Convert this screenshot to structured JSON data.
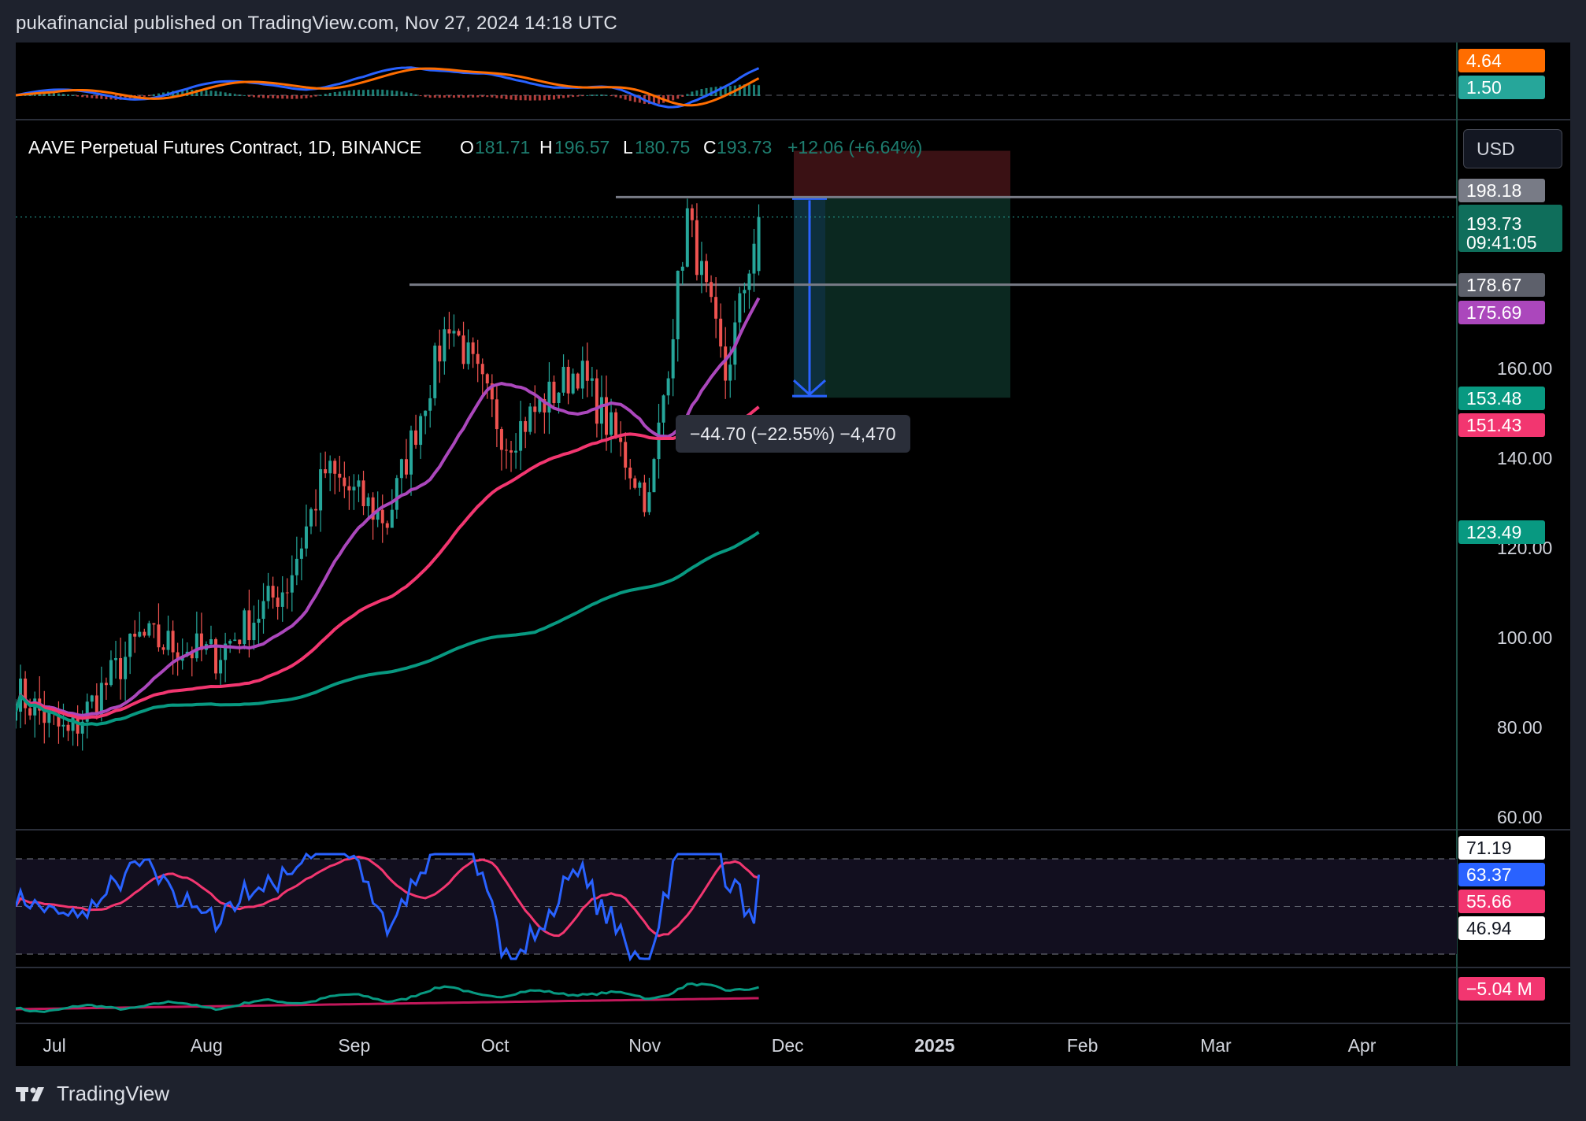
{
  "header": {
    "published": "pukafinancial published on TradingView.com, Nov 27, 2024 14:18 UTC"
  },
  "symbol": {
    "name": "AAVE Perpetual Futures Contract, 1D, BINANCE",
    "open_label": "O",
    "open": "181.71",
    "high_label": "H",
    "high": "196.57",
    "low_label": "L",
    "low": "180.75",
    "close_label": "C",
    "close": "193.73",
    "change": "+12.06 (+6.64%)"
  },
  "currency_button": "USD",
  "measure_tooltip": "−44.70 (−22.55%) −4,470",
  "footer": {
    "brand": "TradingView"
  },
  "colors": {
    "up": "#26a69a",
    "down": "#ef5350",
    "sma_fast": "#ab47bc",
    "sma_mid": "#f23670",
    "sma_slow": "#089981",
    "macd_line": "#2962ff",
    "signal_line": "#ff6d00",
    "rsi_line": "#2962ff",
    "rsi_ma": "#f23670",
    "position_stop": "#3a1114",
    "position_target": "#0b2820"
  },
  "price_axis": {
    "ticks": [
      "160.00",
      "140.00",
      "120.00",
      "100.00",
      "80.00",
      "60.00"
    ],
    "badges": [
      {
        "text": "198.18",
        "bg": "#787b86",
        "fg": "#ffffff"
      },
      {
        "text": "193.73",
        "sub": "09:41:05",
        "bg": "#0f6e5b",
        "fg": "#ffffff"
      },
      {
        "text": "178.67",
        "bg": "#5d606b",
        "fg": "#ffffff"
      },
      {
        "text": "175.69",
        "bg": "#ab47bc",
        "fg": "#ffffff"
      },
      {
        "text": "153.48",
        "bg": "#089981",
        "fg": "#ffffff"
      },
      {
        "text": "151.43",
        "bg": "#f23670",
        "fg": "#ffffff"
      },
      {
        "text": "123.49",
        "bg": "#089981",
        "fg": "#ffffff"
      }
    ]
  },
  "macd_axis": {
    "badges": [
      {
        "text": "4.64",
        "bg": "#ff6d00",
        "fg": "#ffffff"
      },
      {
        "text": "1.50",
        "bg": "#26a69a",
        "fg": "#ffffff"
      }
    ]
  },
  "rsi_axis": {
    "badges": [
      {
        "text": "71.19",
        "bg": "#ffffff",
        "fg": "#131722"
      },
      {
        "text": "63.37",
        "bg": "#2962ff",
        "fg": "#ffffff"
      },
      {
        "text": "55.66",
        "bg": "#f23670",
        "fg": "#ffffff"
      },
      {
        "text": "46.94",
        "bg": "#ffffff",
        "fg": "#131722"
      }
    ]
  },
  "obv_axis": {
    "badges": [
      {
        "text": "−5.04 M",
        "bg": "#f23670",
        "fg": "#ffffff"
      }
    ]
  },
  "time_axis": {
    "labels": [
      "Jul",
      "Aug",
      "Sep",
      "Oct",
      "Nov",
      "Dec",
      "2025",
      "Feb",
      "Mar",
      "Apr"
    ]
  },
  "chart_data": {
    "type": "candlestick",
    "title": "AAVE Perpetual Futures Contract, 1D, BINANCE",
    "x_range": [
      "2024-06-24",
      "2025-04-30"
    ],
    "y_range": [
      60,
      215
    ],
    "scale": "linear",
    "ohlc_sample": [
      {
        "date": "2024-06-24",
        "o": 86,
        "h": 92,
        "l": 84,
        "c": 88
      },
      {
        "date": "2024-07-05",
        "o": 85,
        "h": 90,
        "l": 73,
        "c": 78
      },
      {
        "date": "2024-07-20",
        "o": 95,
        "h": 102,
        "l": 94,
        "c": 100
      },
      {
        "date": "2024-08-05",
        "o": 103,
        "h": 104,
        "l": 76,
        "c": 96
      },
      {
        "date": "2024-08-20",
        "o": 100,
        "h": 114,
        "l": 98,
        "c": 112
      },
      {
        "date": "2024-08-28",
        "o": 120,
        "h": 146,
        "l": 118,
        "c": 137
      },
      {
        "date": "2024-09-10",
        "o": 128,
        "h": 133,
        "l": 118,
        "c": 126
      },
      {
        "date": "2024-09-23",
        "o": 163,
        "h": 178,
        "l": 160,
        "c": 171
      },
      {
        "date": "2024-10-05",
        "o": 150,
        "h": 158,
        "l": 136,
        "c": 144
      },
      {
        "date": "2024-10-20",
        "o": 162,
        "h": 170,
        "l": 156,
        "c": 160
      },
      {
        "date": "2024-11-04",
        "o": 138,
        "h": 142,
        "l": 127,
        "c": 130
      },
      {
        "date": "2024-11-12",
        "o": 185,
        "h": 199,
        "l": 176,
        "c": 194
      },
      {
        "date": "2024-11-20",
        "o": 160,
        "h": 168,
        "l": 150,
        "c": 158
      },
      {
        "date": "2024-11-27",
        "o": 181.71,
        "h": 196.57,
        "l": 180.75,
        "c": 193.73
      }
    ],
    "moving_averages": [
      {
        "name": "fast",
        "last": 175.69
      },
      {
        "name": "mid",
        "last": 151.43
      },
      {
        "name": "slow",
        "last": 123.49
      }
    ],
    "horizontal_levels": [
      198.18,
      178.67
    ],
    "short_position": {
      "entry": 198.18,
      "stop": 208.5,
      "target": 153.48,
      "change": -44.7,
      "change_pct": -22.55,
      "ticks": -4470
    },
    "indicators": {
      "macd": {
        "macd": 4.64,
        "histogram": 1.5
      },
      "rsi": {
        "value": 63.37,
        "ma": 55.66,
        "upper": 71.19,
        "lower": 46.94
      },
      "volume_osc": {
        "value": "−5.04 M"
      }
    }
  }
}
